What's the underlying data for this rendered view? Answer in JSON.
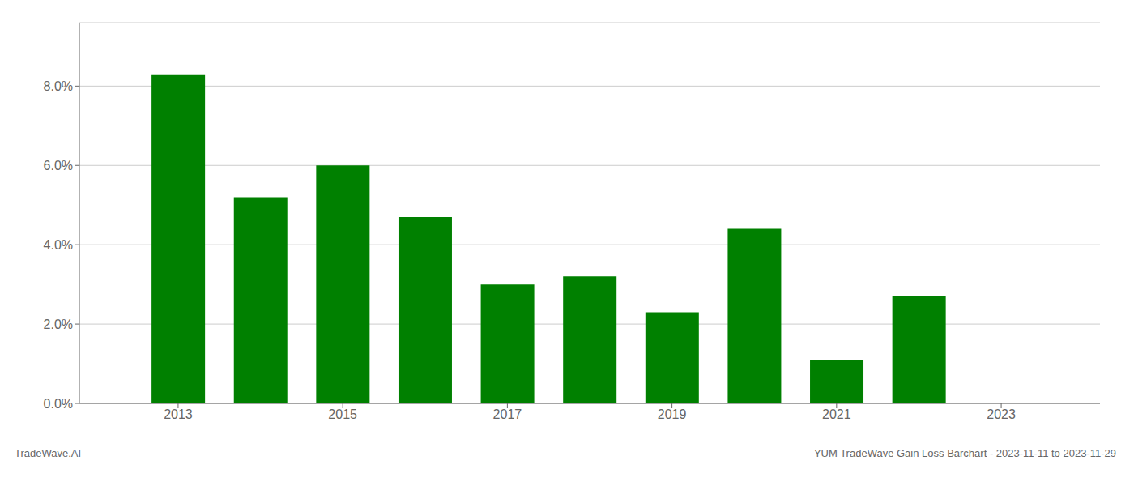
{
  "chart_data": {
    "type": "bar",
    "x": [
      2013,
      2014,
      2015,
      2016,
      2017,
      2018,
      2019,
      2020,
      2021,
      2022
    ],
    "values": [
      0.083,
      0.052,
      0.06,
      0.047,
      0.03,
      0.032,
      0.023,
      0.044,
      0.011,
      0.027
    ],
    "color": "#008000",
    "xlim": [
      2011.8,
      2024.2
    ],
    "xticks": [
      2013,
      2015,
      2017,
      2019,
      2021,
      2023
    ],
    "ylim": [
      0,
      0.096
    ],
    "yticks": [
      {
        "value": 0.0,
        "label": "0.0%"
      },
      {
        "value": 0.02,
        "label": "2.0%"
      },
      {
        "value": 0.04,
        "label": "4.0%"
      },
      {
        "value": 0.06,
        "label": "6.0%"
      },
      {
        "value": 0.08,
        "label": "8.0%"
      }
    ],
    "grid": true,
    "annotations": [
      "TradeWave.AI",
      "YUM TradeWave Gain Loss Barchart - 2023-11-11 to 2023-11-29"
    ]
  }
}
